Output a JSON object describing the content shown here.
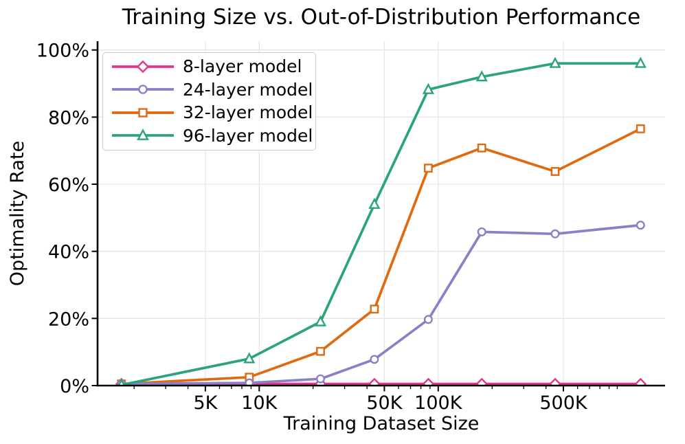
{
  "chart_data": {
    "type": "line",
    "title": "Training Size vs. Out-of-Distribution Performance",
    "xlabel": "Training Dataset Size",
    "ylabel": "Optimality Rate",
    "x_scale": "log",
    "grid": true,
    "legend_position": "upper left",
    "xlim": [
      1250,
      1850000
    ],
    "ylim": [
      0,
      102.6
    ],
    "x": [
      1700,
      8800,
      22000,
      44000,
      88000,
      175000,
      450000,
      1350000
    ],
    "series": [
      {
        "name": "8-layer model",
        "color": "#E3338C",
        "marker": "diamond",
        "values": [
          0.5,
          0.5,
          0.5,
          0.5,
          0.5,
          0.5,
          0.5,
          0.5
        ]
      },
      {
        "name": "24-layer model",
        "color": "#8B80C8",
        "marker": "circle",
        "values": [
          0.5,
          0.8,
          2.0,
          7.8,
          19.7,
          45.8,
          45.2,
          47.8
        ]
      },
      {
        "name": "32-layer model",
        "color": "#DF6A0F",
        "marker": "square",
        "values": [
          0.5,
          2.5,
          10.2,
          22.8,
          64.8,
          70.8,
          63.8,
          76.5
        ]
      },
      {
        "name": "96-layer model",
        "color": "#2BA47E",
        "marker": "triangle",
        "values": [
          0.2,
          8.0,
          19.0,
          54.0,
          88.2,
          92.0,
          96.0,
          96.0
        ]
      }
    ],
    "x_ticks_major": [
      {
        "value": 5000,
        "label": "5K"
      },
      {
        "value": 10000,
        "label": "10K"
      },
      {
        "value": 50000,
        "label": "50K"
      },
      {
        "value": 100000,
        "label": "100K"
      },
      {
        "value": 500000,
        "label": "500K"
      }
    ],
    "x_ticks_minor": [
      2000,
      3000,
      4000,
      6000,
      7000,
      8000,
      9000,
      20000,
      30000,
      40000,
      60000,
      70000,
      80000,
      90000,
      200000,
      300000,
      400000,
      600000,
      700000,
      800000,
      900000,
      1000000
    ],
    "y_ticks": [
      {
        "value": 0,
        "label": "0%"
      },
      {
        "value": 20,
        "label": "20%"
      },
      {
        "value": 40,
        "label": "40%"
      },
      {
        "value": 60,
        "label": "60%"
      },
      {
        "value": 80,
        "label": "80%"
      },
      {
        "value": 100,
        "label": "100%"
      }
    ],
    "colors": {
      "background": "#ffffff",
      "text": "#000000",
      "grid": "#e6e6e6",
      "spine": "#000000",
      "legend_border": "#cccccc",
      "marker_fill": "#ffffff"
    }
  }
}
